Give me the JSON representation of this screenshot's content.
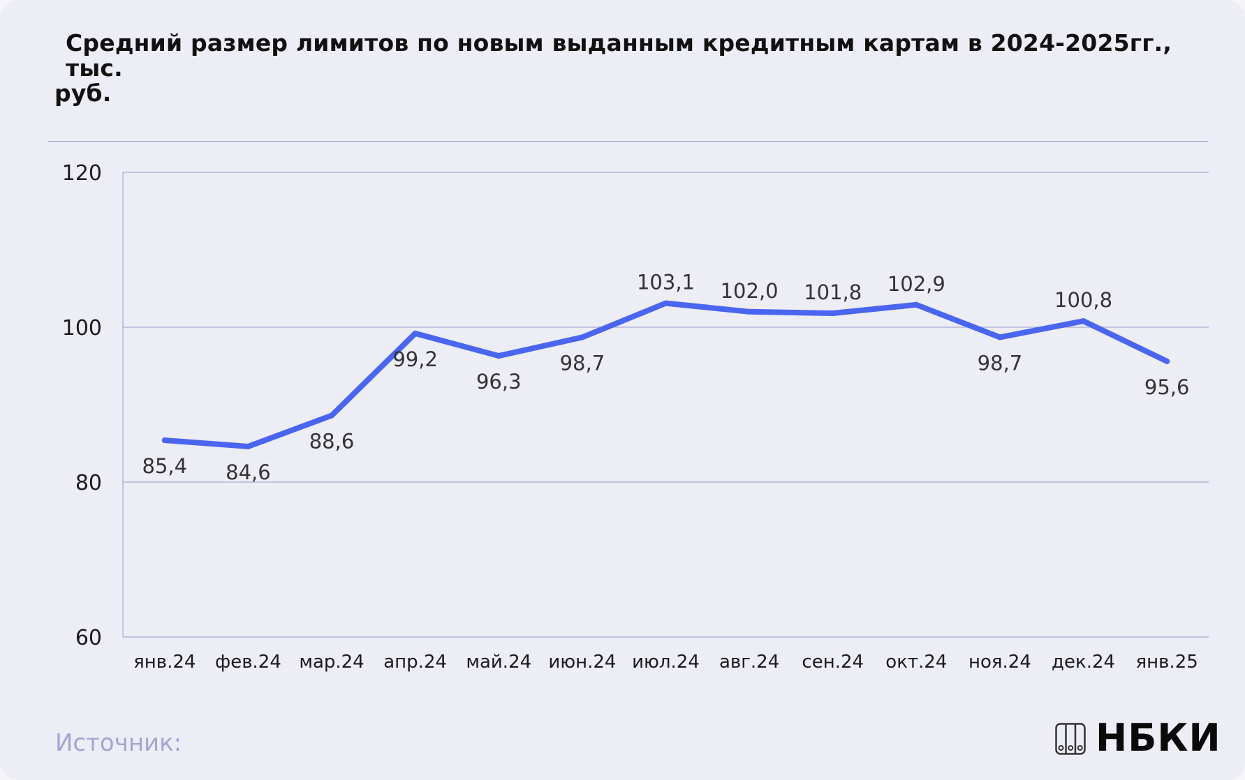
{
  "title_lines": [
    "Средний размер лимитов по новым выданным кредитным картам в 2024-2025гг., тыс.",
    "руб."
  ],
  "chart_data": {
    "type": "line",
    "title": "Средний размер лимитов по новым выданным кредитным картам в 2024-2025гг., тыс. руб.",
    "categories": [
      "янв.24",
      "фев.24",
      "мар.24",
      "апр.24",
      "май.24",
      "июн.24",
      "июл.24",
      "авг.24",
      "сен.24",
      "окт.24",
      "ноя.24",
      "дек.24",
      "янв.25"
    ],
    "series": [
      {
        "values": [
          85.4,
          84.6,
          88.6,
          99.2,
          96.3,
          98.7,
          103.1,
          102.0,
          101.8,
          102.9,
          98.7,
          100.8,
          95.6
        ],
        "labels": [
          "85,4",
          "84,6",
          "88,6",
          "99,2",
          "96,3",
          "98,7",
          "103,1",
          "102,0",
          "101,8",
          "102,9",
          "98,7",
          "100,8",
          "95,6"
        ],
        "label_pos": [
          "below",
          "below",
          "below",
          "below",
          "below",
          "below",
          "above",
          "above",
          "above",
          "above",
          "below",
          "above",
          "below"
        ]
      }
    ],
    "yticks": [
      "60",
      "80",
      "100",
      "120"
    ],
    "ylim": [
      60,
      120
    ],
    "grid": true,
    "line_color": "#4a65f0",
    "grid_color": "#a9abd0"
  },
  "source_label": "Источник:",
  "logo": {
    "text": "НБКИ",
    "icon": "nbki-logo-icon"
  }
}
